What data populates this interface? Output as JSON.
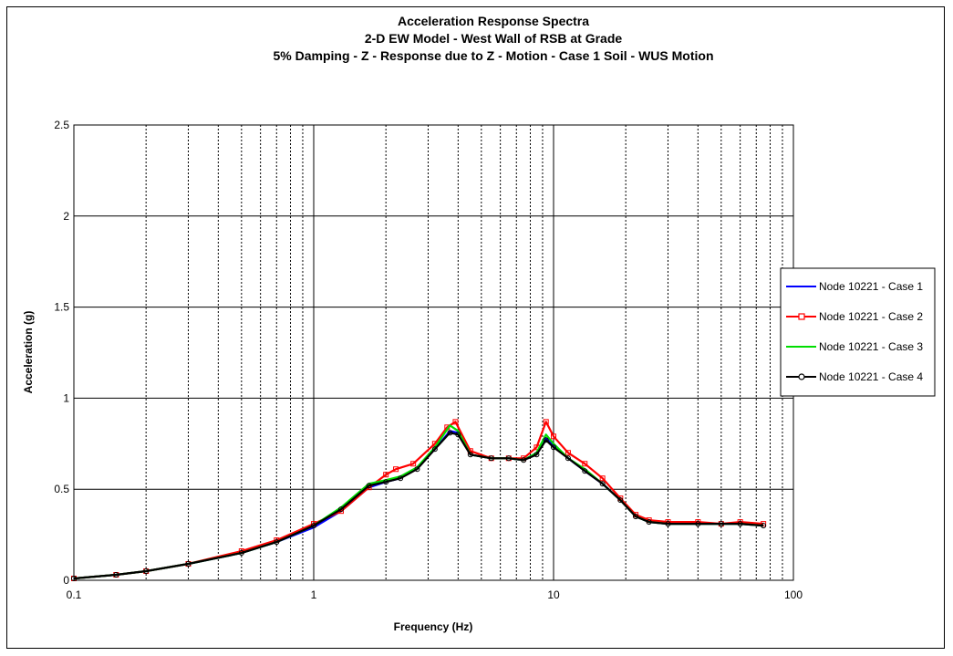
{
  "chart_data": {
    "type": "line",
    "title": [
      "Acceleration Response Spectra",
      "2-D EW Model - West Wall of RSB at Grade",
      "5% Damping - Z - Response due to Z - Motion - Case 1 Soil - WUS Motion"
    ],
    "xlabel": "Frequency (Hz)",
    "ylabel": "Acceleration (g)",
    "xscale": "log",
    "xlim": [
      0.1,
      100
    ],
    "ylim": [
      0,
      2.5
    ],
    "xticks": [
      {
        "value": 0.1,
        "label": "0.1"
      },
      {
        "value": 1,
        "label": "1"
      },
      {
        "value": 10,
        "label": "10"
      },
      {
        "value": 100,
        "label": "100"
      }
    ],
    "yticks": [
      {
        "value": 0,
        "label": "0"
      },
      {
        "value": 0.5,
        "label": "0.5"
      },
      {
        "value": 1,
        "label": "1"
      },
      {
        "value": 1.5,
        "label": "1.5"
      },
      {
        "value": 2,
        "label": "2"
      },
      {
        "value": 2.5,
        "label": "2.5"
      }
    ],
    "grid": true,
    "legend_position": "right",
    "series": [
      {
        "name": "Node 10221 - Case 1",
        "color": "#0000ff",
        "marker": "none",
        "x": [
          0.1,
          0.15,
          0.2,
          0.3,
          0.5,
          0.7,
          1.0,
          1.3,
          1.7,
          2.0,
          2.3,
          2.7,
          3.2,
          3.7,
          4.0,
          4.5,
          5.5,
          6.5,
          7.5,
          8.5,
          9.3,
          10.0,
          11.5,
          13.5,
          16,
          19,
          22,
          25,
          30,
          40,
          50,
          60,
          75
        ],
        "y": [
          0.01,
          0.03,
          0.05,
          0.09,
          0.15,
          0.21,
          0.29,
          0.38,
          0.51,
          0.54,
          0.56,
          0.62,
          0.72,
          0.82,
          0.81,
          0.69,
          0.67,
          0.67,
          0.66,
          0.7,
          0.78,
          0.74,
          0.67,
          0.6,
          0.53,
          0.44,
          0.35,
          0.32,
          0.31,
          0.31,
          0.31,
          0.31,
          0.3
        ]
      },
      {
        "name": "Node 10221 - Case 2",
        "color": "#ff0000",
        "marker": "square",
        "x": [
          0.1,
          0.15,
          0.2,
          0.3,
          0.5,
          0.7,
          1.0,
          1.3,
          1.7,
          2.0,
          2.2,
          2.6,
          3.2,
          3.6,
          3.9,
          4.5,
          5.5,
          6.5,
          7.5,
          8.5,
          9.3,
          10.0,
          11.5,
          13.5,
          16,
          19,
          22,
          25,
          30,
          40,
          50,
          60,
          75
        ],
        "y": [
          0.01,
          0.03,
          0.05,
          0.09,
          0.16,
          0.22,
          0.31,
          0.38,
          0.51,
          0.58,
          0.61,
          0.64,
          0.75,
          0.84,
          0.87,
          0.71,
          0.67,
          0.67,
          0.67,
          0.73,
          0.87,
          0.79,
          0.7,
          0.64,
          0.56,
          0.45,
          0.36,
          0.33,
          0.32,
          0.32,
          0.31,
          0.32,
          0.31
        ]
      },
      {
        "name": "Node 10221 - Case 3",
        "color": "#00dd00",
        "marker": "none",
        "x": [
          0.1,
          0.15,
          0.2,
          0.3,
          0.5,
          0.7,
          1.0,
          1.3,
          1.7,
          2.0,
          2.3,
          2.7,
          3.2,
          3.7,
          4.0,
          4.5,
          5.5,
          6.5,
          7.5,
          8.5,
          9.3,
          10.0,
          11.5,
          13.5,
          16,
          19,
          22,
          25,
          30,
          40,
          50,
          60,
          75
        ],
        "y": [
          0.01,
          0.03,
          0.05,
          0.09,
          0.15,
          0.21,
          0.3,
          0.4,
          0.53,
          0.55,
          0.57,
          0.62,
          0.73,
          0.85,
          0.82,
          0.69,
          0.67,
          0.67,
          0.66,
          0.7,
          0.8,
          0.75,
          0.67,
          0.61,
          0.53,
          0.44,
          0.35,
          0.32,
          0.31,
          0.31,
          0.31,
          0.31,
          0.3
        ]
      },
      {
        "name": "Node 10221 - Case 4",
        "color": "#000000",
        "marker": "circle",
        "x": [
          0.1,
          0.15,
          0.2,
          0.3,
          0.5,
          0.7,
          1.0,
          1.3,
          1.7,
          2.0,
          2.3,
          2.7,
          3.2,
          3.7,
          4.0,
          4.5,
          5.5,
          6.5,
          7.5,
          8.5,
          9.3,
          10.0,
          11.5,
          13.5,
          16,
          19,
          22,
          25,
          30,
          40,
          50,
          60,
          75
        ],
        "y": [
          0.01,
          0.03,
          0.05,
          0.09,
          0.15,
          0.21,
          0.3,
          0.39,
          0.52,
          0.54,
          0.56,
          0.61,
          0.72,
          0.81,
          0.8,
          0.69,
          0.67,
          0.67,
          0.66,
          0.69,
          0.77,
          0.73,
          0.67,
          0.6,
          0.53,
          0.44,
          0.35,
          0.32,
          0.31,
          0.31,
          0.31,
          0.31,
          0.3
        ]
      }
    ]
  }
}
